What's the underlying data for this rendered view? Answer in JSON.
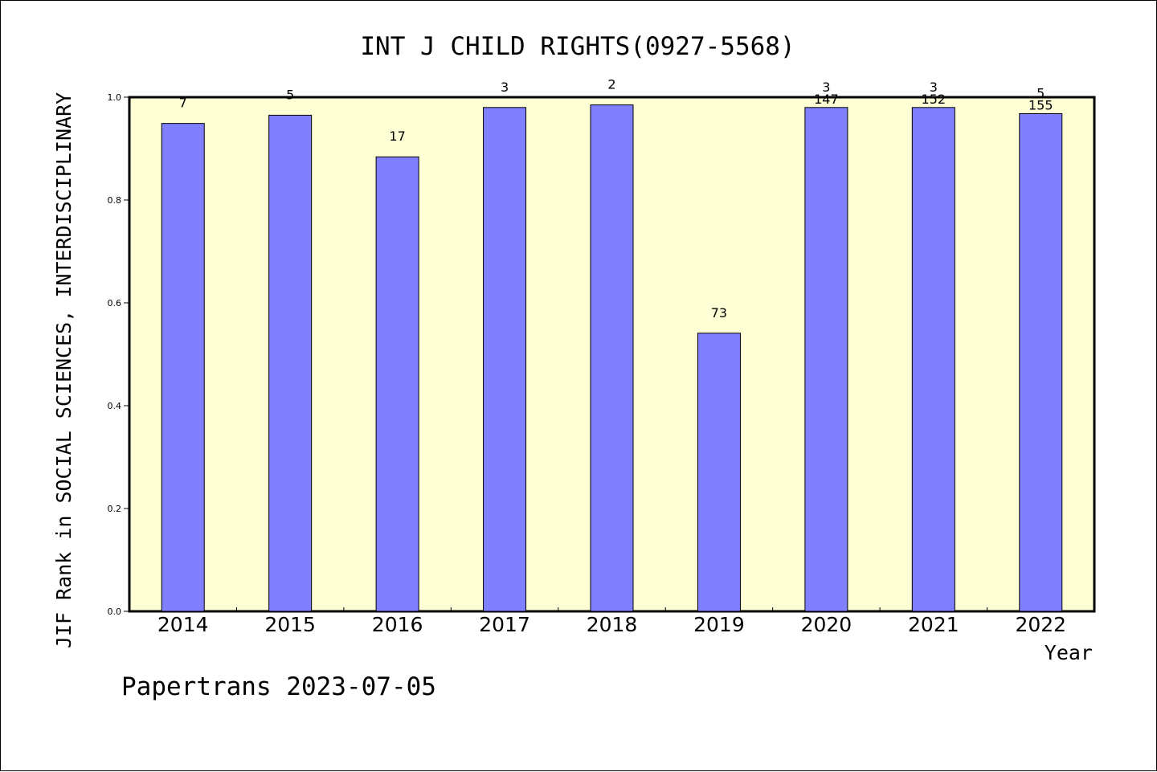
{
  "chart_data": {
    "type": "bar",
    "title": "INT J CHILD RIGHTS(0927-5568)",
    "xlabel": "Year",
    "ylabel": "JIF Rank in SOCIAL SCIENCES, INTERDISCIPLINARY",
    "ylim": [
      0,
      1.0
    ],
    "yticks": [
      "0.0",
      "0.2",
      "0.4",
      "0.6",
      "0.8",
      "1.0"
    ],
    "categories": [
      "2014",
      "2015",
      "2016",
      "2017",
      "2018",
      "2019",
      "2020",
      "2021",
      "2022"
    ],
    "values": [
      0.949,
      0.965,
      0.884,
      0.98,
      0.985,
      0.541,
      0.98,
      0.98,
      0.968
    ],
    "rank_labels": [
      "7",
      "5",
      "17",
      "3",
      "2",
      "73",
      "3",
      "3",
      "5"
    ],
    "total_labels": [
      "",
      "",
      "",
      "",
      "",
      "",
      "147",
      "152",
      "155"
    ],
    "grid": false,
    "colors": {
      "plot_background": "#ffffd5",
      "bar_fill": "#8080ff",
      "bar_stroke": "#000000"
    }
  },
  "footer": "Papertrans 2023-07-05"
}
